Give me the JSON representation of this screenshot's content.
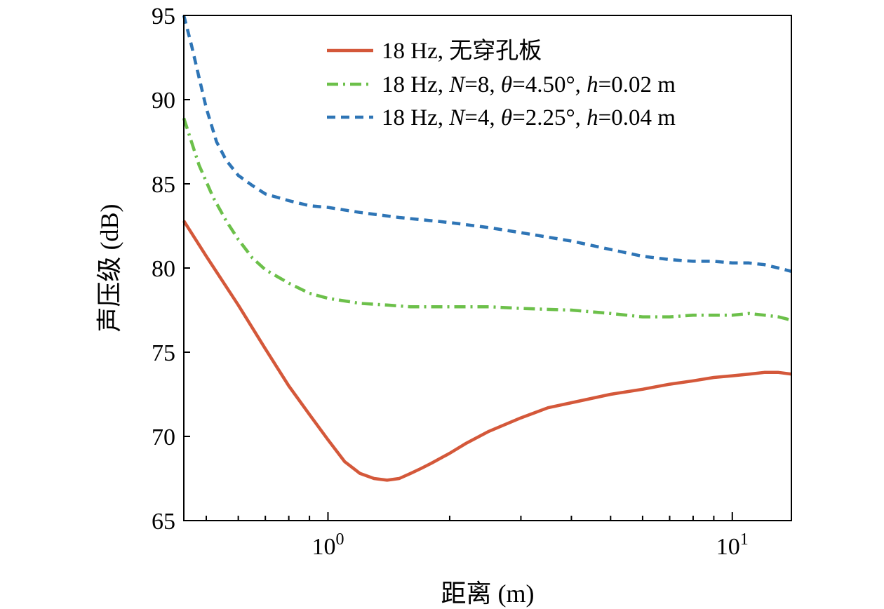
{
  "chart_data": {
    "type": "line",
    "xlabel": "距离 (m)",
    "ylabel": "声压级 (dB)",
    "xscale": "log",
    "xlim": [
      0.44,
      14.0
    ],
    "ylim": [
      65,
      95
    ],
    "yticks": [
      65,
      70,
      75,
      80,
      85,
      90,
      95
    ],
    "ytick_labels": [
      "65",
      "70",
      "75",
      "80",
      "85",
      "90",
      "95"
    ],
    "xticks_major": [
      1,
      10
    ],
    "xtick_labels": [
      {
        "base": "10",
        "exp": "0"
      },
      {
        "base": "10",
        "exp": "1"
      }
    ],
    "grid": false,
    "legend_position": "top-right",
    "series": [
      {
        "name": "18 Hz, 无穿孔板",
        "color": "#d4583a",
        "dash": "solid",
        "x": [
          0.44,
          0.5,
          0.6,
          0.7,
          0.8,
          0.9,
          1.0,
          1.1,
          1.2,
          1.3,
          1.4,
          1.5,
          1.6,
          1.7,
          1.8,
          2.0,
          2.2,
          2.5,
          2.8,
          3.0,
          3.5,
          4.0,
          5.0,
          6.0,
          7.0,
          8.0,
          9.0,
          10.0,
          11.0,
          12.0,
          13.0,
          14.0
        ],
        "y": [
          82.8,
          80.7,
          77.8,
          75.2,
          73.0,
          71.3,
          69.8,
          68.5,
          67.8,
          67.5,
          67.4,
          67.5,
          67.8,
          68.1,
          68.4,
          69.0,
          69.6,
          70.3,
          70.8,
          71.1,
          71.7,
          72.0,
          72.5,
          72.8,
          73.1,
          73.3,
          73.5,
          73.6,
          73.7,
          73.8,
          73.8,
          73.7
        ]
      },
      {
        "name": "18 Hz, N=8, θ=4.50°, h=0.02 m",
        "color": "#6cc04a",
        "dash": "dashdot",
        "x": [
          0.44,
          0.48,
          0.52,
          0.56,
          0.6,
          0.65,
          0.7,
          0.8,
          0.9,
          1.0,
          1.2,
          1.4,
          1.6,
          2.0,
          2.5,
          3.0,
          4.0,
          5.0,
          6.0,
          7.0,
          8.0,
          9.0,
          10.0,
          11.0,
          12.0,
          13.0,
          14.0
        ],
        "y": [
          88.9,
          86.1,
          84.2,
          82.8,
          81.7,
          80.6,
          79.9,
          79.1,
          78.5,
          78.2,
          77.9,
          77.8,
          77.7,
          77.7,
          77.7,
          77.6,
          77.5,
          77.3,
          77.1,
          77.1,
          77.2,
          77.2,
          77.2,
          77.3,
          77.2,
          77.1,
          76.9
        ]
      },
      {
        "name": "18 Hz, N=4, θ=2.25°, h=0.04 m",
        "color": "#2e75b6",
        "dash": "dashed",
        "x": [
          0.44,
          0.46,
          0.48,
          0.5,
          0.53,
          0.56,
          0.6,
          0.65,
          0.7,
          0.8,
          0.9,
          1.0,
          1.2,
          1.5,
          2.0,
          2.5,
          3.0,
          4.0,
          5.0,
          6.0,
          7.0,
          8.0,
          9.0,
          10.0,
          11.0,
          12.0,
          13.0,
          14.0
        ],
        "y": [
          95.0,
          93.2,
          91.3,
          89.5,
          87.5,
          86.4,
          85.5,
          84.9,
          84.4,
          84.0,
          83.7,
          83.6,
          83.3,
          83.0,
          82.7,
          82.4,
          82.1,
          81.6,
          81.1,
          80.7,
          80.5,
          80.4,
          80.4,
          80.3,
          80.3,
          80.2,
          80.0,
          79.8
        ]
      }
    ]
  }
}
